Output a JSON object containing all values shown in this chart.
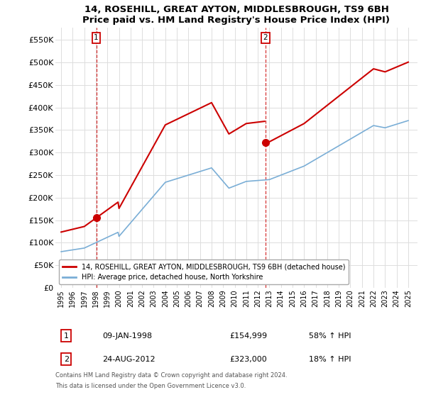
{
  "title": "14, ROSEHILL, GREAT AYTON, MIDDLESBROUGH, TS9 6BH",
  "subtitle": "Price paid vs. HM Land Registry's House Price Index (HPI)",
  "legend_line1": "14, ROSEHILL, GREAT AYTON, MIDDLESBROUGH, TS9 6BH (detached house)",
  "legend_line2": "HPI: Average price, detached house, North Yorkshire",
  "transaction1_date": "09-JAN-1998",
  "transaction1_price": "£154,999",
  "transaction1_hpi": "58% ↑ HPI",
  "transaction2_date": "24-AUG-2012",
  "transaction2_price": "£323,000",
  "transaction2_hpi": "18% ↑ HPI",
  "footnote1": "Contains HM Land Registry data © Crown copyright and database right 2024.",
  "footnote2": "This data is licensed under the Open Government Licence v3.0.",
  "property_color": "#cc0000",
  "hpi_color": "#7aaed6",
  "background_color": "#ffffff",
  "grid_color": "#dddddd",
  "t1_x": 1998.03,
  "t2_x": 2012.65,
  "t1_y": 154999,
  "t2_y": 323000,
  "ylim": [
    0,
    577000
  ],
  "xlim_start": 1994.5,
  "xlim_end": 2025.8,
  "yticks": [
    0,
    50000,
    100000,
    150000,
    200000,
    250000,
    300000,
    350000,
    400000,
    450000,
    500000,
    550000
  ],
  "ytick_labels": [
    "£0",
    "£50K",
    "£100K",
    "£150K",
    "£200K",
    "£250K",
    "£300K",
    "£350K",
    "£400K",
    "£450K",
    "£500K",
    "£550K"
  ],
  "xticks": [
    1995,
    1996,
    1997,
    1998,
    1999,
    2000,
    2001,
    2002,
    2003,
    2004,
    2005,
    2006,
    2007,
    2008,
    2009,
    2010,
    2011,
    2012,
    2013,
    2014,
    2015,
    2016,
    2017,
    2018,
    2019,
    2020,
    2021,
    2022,
    2023,
    2024,
    2025
  ]
}
